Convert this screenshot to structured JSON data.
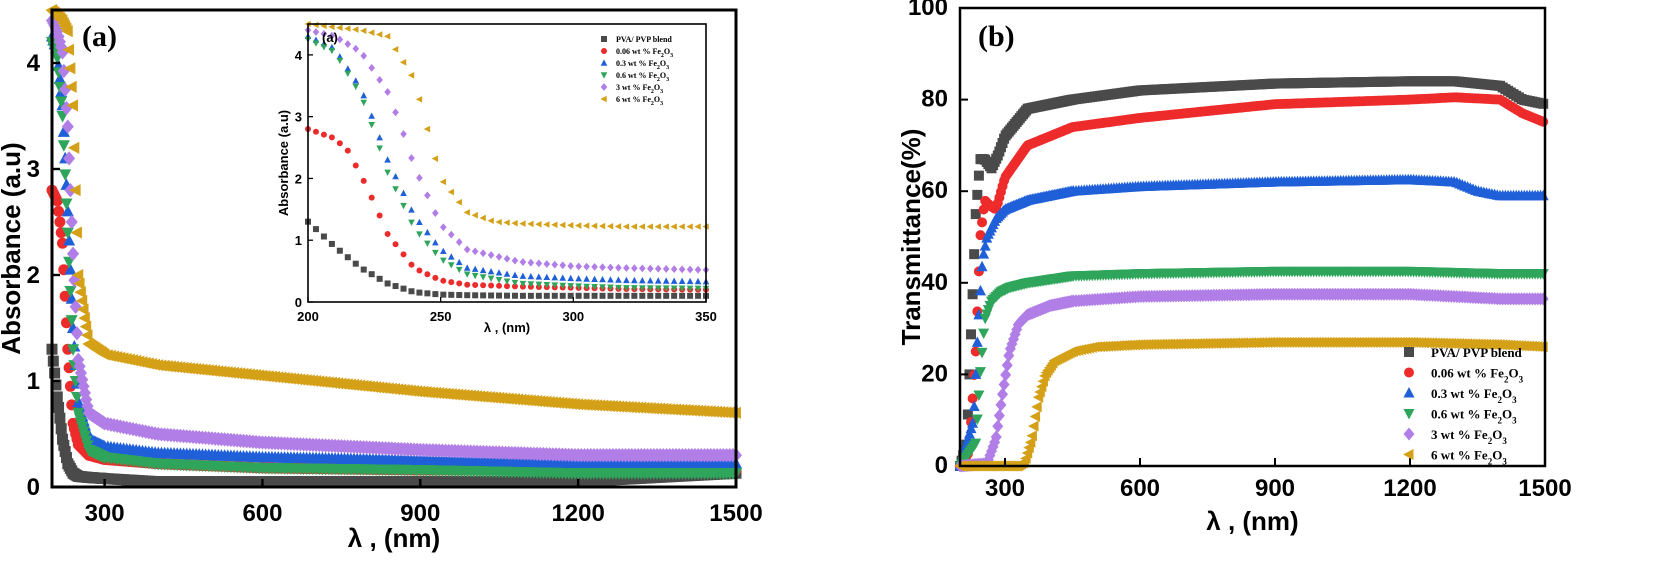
{
  "chart_data": [
    {
      "id": "a",
      "type": "scatter",
      "panel_label": "(a)",
      "xlabel": "λ , (nm)",
      "ylabel": "Absorbance (a.u)",
      "xlim": [
        200,
        1500
      ],
      "ylim": [
        0,
        4.5
      ],
      "xticks": [
        300,
        600,
        900,
        1200,
        1500
      ],
      "yticks": [
        0,
        1,
        2,
        3,
        4
      ],
      "series": [
        {
          "name": "PVA/ PVP blend",
          "color": "#4a4a4a",
          "marker": "square",
          "x": [
            200,
            210,
            220,
            230,
            240,
            250,
            270,
            300,
            400,
            600,
            900,
            1200,
            1500
          ],
          "y": [
            1.3,
            0.85,
            0.45,
            0.22,
            0.13,
            0.1,
            0.09,
            0.08,
            0.05,
            0.05,
            0.05,
            0.05,
            0.13
          ]
        },
        {
          "name": "0.06 wt % Fe2O3",
          "color": "#ee2b2b",
          "marker": "circle",
          "x": [
            200,
            210,
            220,
            230,
            240,
            250,
            270,
            300,
            400,
            600,
            900,
            1200,
            1500
          ],
          "y": [
            2.8,
            2.7,
            2.3,
            1.3,
            0.6,
            0.4,
            0.3,
            0.26,
            0.22,
            0.18,
            0.16,
            0.16,
            0.16
          ]
        },
        {
          "name": "0.3 wt % Fe2O3",
          "color": "#1f5fd8",
          "marker": "triangle-up",
          "x": [
            200,
            210,
            220,
            230,
            240,
            250,
            270,
            300,
            400,
            600,
            900,
            1200,
            1500
          ],
          "y": [
            4.25,
            4.1,
            3.6,
            2.6,
            1.5,
            0.8,
            0.45,
            0.38,
            0.32,
            0.28,
            0.25,
            0.22,
            0.22
          ]
        },
        {
          "name": "0.6 wt % Fe2O3",
          "color": "#2ea55a",
          "marker": "triangle-down",
          "x": [
            200,
            210,
            220,
            230,
            240,
            250,
            270,
            300,
            400,
            600,
            900,
            1200,
            1500
          ],
          "y": [
            4.2,
            4.05,
            3.5,
            2.4,
            1.3,
            0.7,
            0.35,
            0.28,
            0.22,
            0.18,
            0.16,
            0.13,
            0.13
          ]
        },
        {
          "name": "3 wt % Fe2O3",
          "color": "#b07ee6",
          "marker": "diamond",
          "x": [
            200,
            210,
            220,
            230,
            240,
            250,
            270,
            300,
            400,
            600,
            900,
            1200,
            1500
          ],
          "y": [
            4.4,
            4.3,
            4.1,
            3.4,
            2.2,
            1.2,
            0.7,
            0.6,
            0.5,
            0.42,
            0.35,
            0.3,
            0.3
          ]
        },
        {
          "name": "6 wt % Fe2O3",
          "color": "#d4a017",
          "marker": "triangle-left",
          "x": [
            200,
            210,
            220,
            230,
            240,
            250,
            270,
            300,
            400,
            600,
            900,
            1200,
            1500
          ],
          "y": [
            4.5,
            4.45,
            4.4,
            4.3,
            3.6,
            2.0,
            1.35,
            1.25,
            1.15,
            1.05,
            0.9,
            0.78,
            0.7
          ]
        }
      ]
    },
    {
      "id": "a-inset",
      "type": "scatter",
      "panel_label": "(a)",
      "xlabel": "λ , (nm)",
      "ylabel": "Absorbance (a.u)",
      "xlim": [
        200,
        350
      ],
      "ylim": [
        0,
        4.5
      ],
      "xticks": [
        200,
        250,
        300,
        350
      ],
      "yticks": [
        0,
        1,
        2,
        3,
        4
      ],
      "series": [
        {
          "name": "PVA/ PVP blend",
          "color": "#4a4a4a",
          "marker": "square",
          "x": [
            200,
            210,
            220,
            230,
            240,
            250,
            260,
            280,
            300,
            320,
            350
          ],
          "y": [
            1.3,
            0.9,
            0.55,
            0.3,
            0.16,
            0.12,
            0.11,
            0.1,
            0.1,
            0.1,
            0.1
          ]
        },
        {
          "name": "0.06 wt % Fe2O3",
          "color": "#ee2b2b",
          "marker": "circle",
          "x": [
            200,
            210,
            215,
            220,
            225,
            230,
            240,
            250,
            260,
            280,
            300,
            320,
            350
          ],
          "y": [
            2.8,
            2.65,
            2.45,
            2.05,
            1.6,
            1.1,
            0.55,
            0.35,
            0.28,
            0.25,
            0.23,
            0.21,
            0.2
          ]
        },
        {
          "name": "0.3 wt % Fe2O3",
          "color": "#1f5fd8",
          "marker": "triangle-up",
          "x": [
            200,
            210,
            220,
            225,
            230,
            240,
            250,
            260,
            280,
            300,
            320,
            350
          ],
          "y": [
            4.3,
            4.1,
            3.45,
            2.9,
            2.3,
            1.4,
            0.85,
            0.55,
            0.42,
            0.38,
            0.35,
            0.33
          ]
        },
        {
          "name": "0.6 wt % Fe2O3",
          "color": "#2ea55a",
          "marker": "triangle-down",
          "x": [
            200,
            210,
            220,
            225,
            230,
            240,
            250,
            260,
            280,
            300,
            320,
            350
          ],
          "y": [
            4.25,
            4.05,
            3.35,
            2.75,
            2.1,
            1.2,
            0.7,
            0.45,
            0.3,
            0.26,
            0.23,
            0.22
          ]
        },
        {
          "name": "3 wt % Fe2O3",
          "color": "#b07ee6",
          "marker": "diamond",
          "x": [
            200,
            210,
            220,
            230,
            235,
            240,
            250,
            260,
            280,
            300,
            320,
            350
          ],
          "y": [
            4.4,
            4.3,
            4.05,
            3.4,
            2.85,
            2.2,
            1.25,
            0.85,
            0.65,
            0.58,
            0.55,
            0.52
          ]
        },
        {
          "name": "6 wt % Fe2O3",
          "color": "#d4a017",
          "marker": "triangle-left",
          "x": [
            200,
            210,
            220,
            230,
            240,
            245,
            250,
            260,
            270,
            280,
            300,
            320,
            350
          ],
          "y": [
            4.5,
            4.45,
            4.4,
            4.3,
            3.6,
            2.8,
            2.0,
            1.45,
            1.3,
            1.27,
            1.24,
            1.22,
            1.22
          ]
        }
      ]
    },
    {
      "id": "b",
      "type": "scatter",
      "panel_label": "(b)",
      "xlabel": "λ , (nm)",
      "ylabel": "Transmittance(%)",
      "xlim": [
        200,
        1500
      ],
      "ylim": [
        0,
        100
      ],
      "xticks": [
        300,
        600,
        900,
        1200,
        1500
      ],
      "yticks": [
        0,
        20,
        40,
        60,
        80,
        100
      ],
      "series": [
        {
          "name": "PVA/ PVP blend",
          "color": "#4a4a4a",
          "marker": "square",
          "x": [
            200,
            215,
            225,
            235,
            245,
            255,
            270,
            285,
            300,
            350,
            450,
            600,
            900,
            1200,
            1300,
            1400,
            1450,
            1500
          ],
          "y": [
            0,
            5,
            30,
            55,
            67,
            67,
            65,
            68,
            72,
            78,
            80,
            82,
            83.5,
            84,
            84,
            83,
            80,
            79
          ]
        },
        {
          "name": "0.06 wt % Fe2O3",
          "color": "#ee2b2b",
          "marker": "circle",
          "x": [
            200,
            220,
            235,
            245,
            255,
            265,
            280,
            300,
            350,
            450,
            600,
            900,
            1200,
            1300,
            1400,
            1450,
            1500
          ],
          "y": [
            0,
            3,
            25,
            50,
            58,
            57,
            56,
            63,
            70,
            74,
            76,
            79,
            80,
            80.5,
            80,
            77,
            75
          ]
        },
        {
          "name": "0.3 wt % Fe2O3",
          "color": "#1f5fd8",
          "marker": "triangle-up",
          "x": [
            200,
            230,
            240,
            250,
            260,
            280,
            300,
            350,
            450,
            600,
            900,
            1200,
            1300,
            1350,
            1400,
            1500
          ],
          "y": [
            0,
            10,
            30,
            45,
            50,
            54,
            56,
            58,
            60,
            61,
            62,
            62.5,
            62,
            60,
            59,
            59
          ]
        },
        {
          "name": "0.6 wt % Fe2O3",
          "color": "#2ea55a",
          "marker": "triangle-down",
          "x": [
            200,
            235,
            245,
            255,
            270,
            290,
            310,
            350,
            450,
            600,
            900,
            1200,
            1400,
            1500
          ],
          "y": [
            0,
            5,
            20,
            32,
            36,
            38,
            39,
            40,
            41.5,
            42,
            42.5,
            42.5,
            42,
            42
          ]
        },
        {
          "name": "3 wt % Fe2O3",
          "color": "#b07ee6",
          "marker": "diamond",
          "x": [
            200,
            260,
            280,
            295,
            310,
            330,
            350,
            400,
            450,
            600,
            900,
            1200,
            1400,
            1500
          ],
          "y": [
            0,
            0.5,
            6,
            16,
            25,
            31,
            33,
            35,
            36,
            37,
            37.5,
            37.5,
            36.5,
            36.5
          ]
        },
        {
          "name": "6 wt % Fe2O3",
          "color": "#d4a017",
          "marker": "triangle-left",
          "x": [
            200,
            330,
            345,
            360,
            375,
            390,
            410,
            450,
            500,
            600,
            900,
            1200,
            1400,
            1500
          ],
          "y": [
            0,
            0,
            1,
            6,
            15,
            20,
            23,
            25,
            26,
            26.5,
            27,
            27,
            26.5,
            26
          ]
        }
      ]
    }
  ],
  "legend": {
    "entries": [
      {
        "main": "PVA/ PVP blend",
        "formula_base": "",
        "sub1": "",
        "formula_mid": "",
        "sub2": ""
      },
      {
        "main": "0.06 wt % ",
        "formula_base": "Fe",
        "sub1": "2",
        "formula_mid": "O",
        "sub2": "3"
      },
      {
        "main": "0.3 wt % ",
        "formula_base": "Fe",
        "sub1": "2",
        "formula_mid": "O",
        "sub2": "3"
      },
      {
        "main": "0.6 wt % ",
        "formula_base": "Fe",
        "sub1": "2",
        "formula_mid": "O",
        "sub2": "3"
      },
      {
        "main": "3 wt % ",
        "formula_base": "Fe",
        "sub1": "2",
        "formula_mid": "O",
        "sub2": "3"
      },
      {
        "main": "6 wt % ",
        "formula_base": "Fe",
        "sub1": "2",
        "formula_mid": "O",
        "sub2": "3"
      }
    ]
  }
}
